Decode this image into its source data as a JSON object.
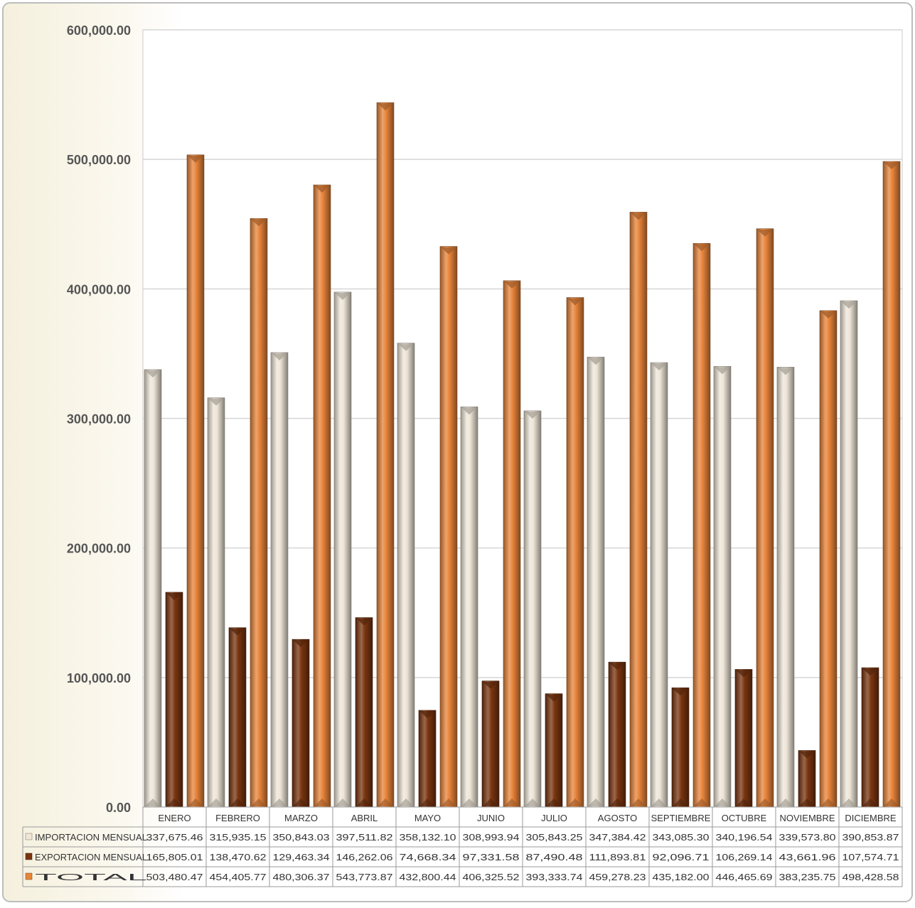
{
  "chart_data": {
    "type": "bar",
    "categories": [
      "ENERO",
      "FEBRERO",
      "MARZO",
      "ABRIL",
      "MAYO",
      "JUNIO",
      "JULIO",
      "AGOSTO",
      "SEPTIEMBRE",
      "OCTUBRE",
      "NOVIEMBRE",
      "DICIEMBRE"
    ],
    "series": [
      {
        "name": "IMPORTACION MENSUAL",
        "color": "#efe6d8",
        "values": [
          337675.46,
          315935.15,
          350843.03,
          397511.82,
          358132.1,
          308993.94,
          305843.25,
          347384.42,
          343085.3,
          340196.54,
          339573.8,
          390853.87
        ],
        "labels": [
          "337,675.46",
          "315,935.15",
          "350,843.03",
          "397,511.82",
          "358,132.10",
          "308,993.94",
          "305,843.25",
          "347,384.42",
          "343,085.30",
          "340,196.54",
          "339,573.80",
          "390,853.87"
        ]
      },
      {
        "name": "EXPORTACION MENSUAL",
        "color": "#7a3510",
        "values": [
          165805.01,
          138470.62,
          129463.34,
          146262.06,
          74668.34,
          97331.58,
          87490.48,
          111893.81,
          92096.71,
          106269.14,
          43661.96,
          107574.71
        ],
        "labels": [
          "165,805.01",
          "138,470.62",
          "129,463.34",
          "146,262.06",
          "74,668.34",
          "97,331.58",
          "87,490.48",
          "111,893.81",
          "92,096.71",
          "106,269.14",
          "43,661.96",
          "107,574.71"
        ]
      },
      {
        "name": "TOTAL",
        "color": "#e8843a",
        "values": [
          503480.47,
          454405.77,
          480306.37,
          543773.87,
          432800.44,
          406325.52,
          393333.74,
          459278.23,
          435182.0,
          446465.69,
          383235.75,
          498428.58
        ],
        "labels": [
          "503,480.47",
          "454,405.77",
          "480,306.37",
          "543,773.87",
          "432,800.44",
          "406,325.52",
          "393,333.74",
          "459,278.23",
          "435,182.00",
          "446,465.69",
          "383,235.75",
          "498,428.58"
        ]
      }
    ],
    "ylim": [
      0,
      600000
    ],
    "yticks": [
      0,
      100000,
      200000,
      300000,
      400000,
      500000,
      600000
    ],
    "ytick_labels": [
      "0.00",
      "100,000.00",
      "200,000.00",
      "300,000.00",
      "400,000.00",
      "500,000.00",
      "600,000.00"
    ],
    "grid": true,
    "legend": "data-table-below"
  }
}
